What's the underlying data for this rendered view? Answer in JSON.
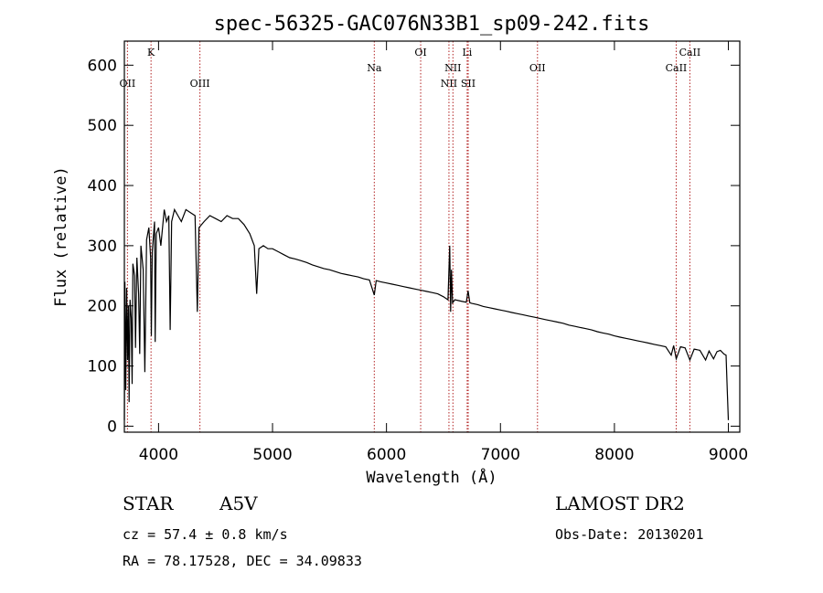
{
  "chart_data": {
    "type": "line",
    "title": "spec-56325-GAC076N33B1_sp09-242.fits",
    "xlabel": "Wavelength (Å)",
    "ylabel": "Flux (relative)",
    "xlim": [
      3700,
      9100
    ],
    "ylim": [
      -10,
      640
    ],
    "x_ticks": [
      4000,
      5000,
      6000,
      7000,
      8000,
      9000
    ],
    "y_ticks": [
      0,
      100,
      200,
      300,
      400,
      500,
      600
    ],
    "grid": false,
    "spectrum": [
      [
        3700,
        10
      ],
      [
        3705,
        240
      ],
      [
        3712,
        60
      ],
      [
        3720,
        230
      ],
      [
        3728,
        110
      ],
      [
        3735,
        200
      ],
      [
        3742,
        40
      ],
      [
        3750,
        210
      ],
      [
        3760,
        180
      ],
      [
        3768,
        70
      ],
      [
        3775,
        270
      ],
      [
        3790,
        250
      ],
      [
        3798,
        130
      ],
      [
        3810,
        280
      ],
      [
        3825,
        220
      ],
      [
        3835,
        120
      ],
      [
        3845,
        300
      ],
      [
        3865,
        260
      ],
      [
        3880,
        90
      ],
      [
        3895,
        310
      ],
      [
        3915,
        330
      ],
      [
        3930,
        280
      ],
      [
        3937,
        150
      ],
      [
        3945,
        290
      ],
      [
        3965,
        340
      ],
      [
        3970,
        140
      ],
      [
        3980,
        320
      ],
      [
        4000,
        330
      ],
      [
        4020,
        300
      ],
      [
        4050,
        360
      ],
      [
        4070,
        340
      ],
      [
        4090,
        350
      ],
      [
        4102,
        160
      ],
      [
        4115,
        340
      ],
      [
        4140,
        360
      ],
      [
        4170,
        350
      ],
      [
        4200,
        340
      ],
      [
        4240,
        360
      ],
      [
        4280,
        355
      ],
      [
        4320,
        350
      ],
      [
        4340,
        190
      ],
      [
        4355,
        330
      ],
      [
        4400,
        340
      ],
      [
        4450,
        350
      ],
      [
        4500,
        345
      ],
      [
        4550,
        340
      ],
      [
        4600,
        350
      ],
      [
        4650,
        345
      ],
      [
        4700,
        345
      ],
      [
        4750,
        335
      ],
      [
        4800,
        320
      ],
      [
        4840,
        300
      ],
      [
        4861,
        220
      ],
      [
        4880,
        295
      ],
      [
        4920,
        300
      ],
      [
        4960,
        295
      ],
      [
        5000,
        295
      ],
      [
        5050,
        290
      ],
      [
        5100,
        285
      ],
      [
        5150,
        280
      ],
      [
        5200,
        278
      ],
      [
        5250,
        275
      ],
      [
        5300,
        272
      ],
      [
        5350,
        268
      ],
      [
        5400,
        265
      ],
      [
        5450,
        262
      ],
      [
        5500,
        260
      ],
      [
        5550,
        257
      ],
      [
        5600,
        254
      ],
      [
        5650,
        252
      ],
      [
        5700,
        250
      ],
      [
        5750,
        248
      ],
      [
        5800,
        245
      ],
      [
        5850,
        243
      ],
      [
        5893,
        218
      ],
      [
        5910,
        242
      ],
      [
        5950,
        240
      ],
      [
        6000,
        238
      ],
      [
        6050,
        236
      ],
      [
        6100,
        234
      ],
      [
        6150,
        232
      ],
      [
        6200,
        230
      ],
      [
        6250,
        228
      ],
      [
        6300,
        226
      ],
      [
        6350,
        224
      ],
      [
        6400,
        222
      ],
      [
        6450,
        220
      ],
      [
        6500,
        215
      ],
      [
        6540,
        210
      ],
      [
        6555,
        300
      ],
      [
        6563,
        190
      ],
      [
        6570,
        260
      ],
      [
        6580,
        205
      ],
      [
        6600,
        210
      ],
      [
        6650,
        208
      ],
      [
        6700,
        206
      ],
      [
        6716,
        225
      ],
      [
        6731,
        205
      ],
      [
        6750,
        204
      ],
      [
        6800,
        202
      ],
      [
        6850,
        199
      ],
      [
        6900,
        197
      ],
      [
        6950,
        195
      ],
      [
        7000,
        193
      ],
      [
        7050,
        191
      ],
      [
        7100,
        189
      ],
      [
        7150,
        187
      ],
      [
        7200,
        185
      ],
      [
        7250,
        183
      ],
      [
        7300,
        181
      ],
      [
        7350,
        179
      ],
      [
        7400,
        177
      ],
      [
        7450,
        175
      ],
      [
        7500,
        173
      ],
      [
        7550,
        171
      ],
      [
        7600,
        168
      ],
      [
        7650,
        166
      ],
      [
        7700,
        164
      ],
      [
        7750,
        162
      ],
      [
        7800,
        160
      ],
      [
        7850,
        157
      ],
      [
        7900,
        155
      ],
      [
        7950,
        153
      ],
      [
        8000,
        150
      ],
      [
        8050,
        148
      ],
      [
        8100,
        146
      ],
      [
        8150,
        144
      ],
      [
        8200,
        142
      ],
      [
        8250,
        140
      ],
      [
        8300,
        138
      ],
      [
        8350,
        136
      ],
      [
        8400,
        134
      ],
      [
        8450,
        132
      ],
      [
        8498,
        118
      ],
      [
        8520,
        134
      ],
      [
        8542,
        112
      ],
      [
        8580,
        132
      ],
      [
        8620,
        130
      ],
      [
        8662,
        110
      ],
      [
        8700,
        128
      ],
      [
        8750,
        126
      ],
      [
        8800,
        110
      ],
      [
        8830,
        125
      ],
      [
        8870,
        112
      ],
      [
        8900,
        124
      ],
      [
        8930,
        126
      ],
      [
        8960,
        120
      ],
      [
        8980,
        118
      ],
      [
        8990,
        60
      ],
      [
        9000,
        10
      ]
    ],
    "lines": [
      {
        "label": "OII",
        "x": 3727,
        "row": 3
      },
      {
        "label": "K",
        "x": 3934,
        "row": 1
      },
      {
        "label": "OIII",
        "x": 4363,
        "row": 3
      },
      {
        "label": "Na",
        "x": 5893,
        "row": 2
      },
      {
        "label": "OI",
        "x": 6300,
        "row": 1
      },
      {
        "label": "NII",
        "x": 6548,
        "row": 3
      },
      {
        "label": "NII",
        "x": 6583,
        "row": 2
      },
      {
        "label": "Li",
        "x": 6708,
        "row": 1
      },
      {
        "label": "SII",
        "x": 6717,
        "row": 3
      },
      {
        "label": "OII",
        "x": 7325,
        "row": 2
      },
      {
        "label": "CaII",
        "x": 8542,
        "row": 2
      },
      {
        "label": "CaII",
        "x": 8662,
        "row": 1
      }
    ]
  },
  "footer": {
    "class_label": "STAR",
    "subclass": "A5V",
    "survey": "LAMOST DR2",
    "cz": "cz = 57.4 ± 0.8 km/s",
    "obs_date": "Obs-Date: 20130201",
    "radec": "RA =  78.17528, DEC =  34.09833"
  },
  "colors": {
    "spectrum": "#000000",
    "line_markers": "#b22222"
  }
}
